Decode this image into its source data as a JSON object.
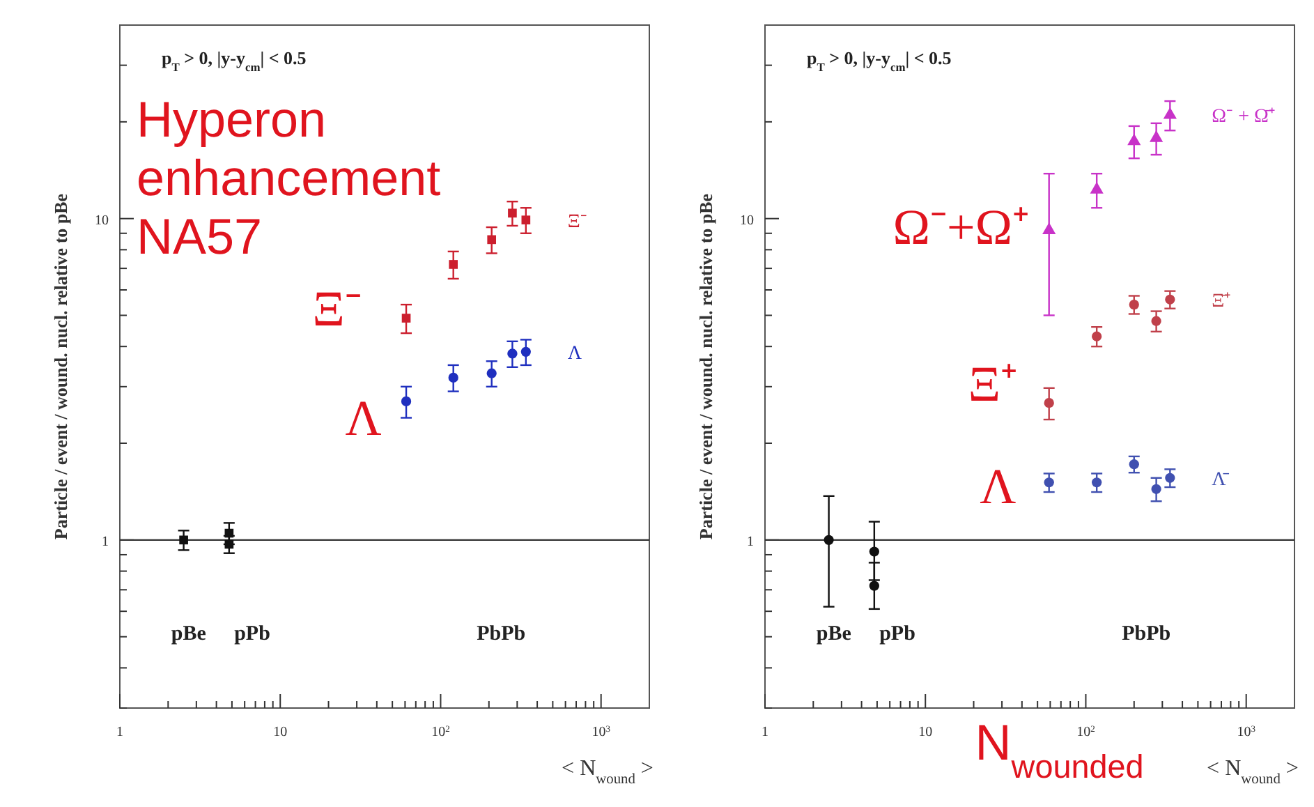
{
  "chart_data": [
    {
      "type": "scatter",
      "title": "Hyperon enhancement NA57",
      "subtitle": "p$_{T}$ > 0,  |y-y$_{cm}$| < 0.5",
      "xlabel": "< N$_{wound}$ >",
      "ylabel": "Particle / event / wound. nucl. relative to pBe",
      "log": "xy",
      "grid": false,
      "xlim": [
        1,
        2000
      ],
      "ylim": [
        0.3,
        40
      ],
      "xticks": [
        {
          "value": 1,
          "label": "1"
        },
        {
          "value": 2,
          "label": null
        },
        {
          "value": 3,
          "label": null
        },
        {
          "value": 4,
          "label": null
        },
        {
          "value": 5,
          "label": null
        },
        {
          "value": 6,
          "label": null
        },
        {
          "value": 7,
          "label": null
        },
        {
          "value": 8,
          "label": null
        },
        {
          "value": 9,
          "label": null
        },
        {
          "value": 10,
          "label": "10"
        },
        {
          "value": 20,
          "label": null
        },
        {
          "value": 30,
          "label": null
        },
        {
          "value": 40,
          "label": null
        },
        {
          "value": 50,
          "label": null
        },
        {
          "value": 60,
          "label": null
        },
        {
          "value": 70,
          "label": null
        },
        {
          "value": 80,
          "label": null
        },
        {
          "value": 90,
          "label": null
        },
        {
          "value": 100,
          "label": "10$^{2}$"
        },
        {
          "value": 200,
          "label": null
        },
        {
          "value": 300,
          "label": null
        },
        {
          "value": 400,
          "label": null
        },
        {
          "value": 500,
          "label": null
        },
        {
          "value": 600,
          "label": null
        },
        {
          "value": 700,
          "label": null
        },
        {
          "value": 800,
          "label": null
        },
        {
          "value": 900,
          "label": null
        },
        {
          "value": 1000,
          "label": "10$^{3}$"
        }
      ],
      "yticks": [
        {
          "value": 0.3,
          "label": null
        },
        {
          "value": 0.4,
          "label": null
        },
        {
          "value": 0.5,
          "label": null
        },
        {
          "value": 0.6,
          "label": null
        },
        {
          "value": 0.7,
          "label": null
        },
        {
          "value": 0.8,
          "label": null
        },
        {
          "value": 0.9,
          "label": null
        },
        {
          "value": 1,
          "label": "1"
        },
        {
          "value": 2,
          "label": null
        },
        {
          "value": 3,
          "label": null
        },
        {
          "value": 4,
          "label": null
        },
        {
          "value": 5,
          "label": null
        },
        {
          "value": 6,
          "label": null
        },
        {
          "value": 7,
          "label": null
        },
        {
          "value": 8,
          "label": null
        },
        {
          "value": 9,
          "label": null
        },
        {
          "value": 10,
          "label": "10"
        },
        {
          "value": 20,
          "label": null
        },
        {
          "value": 30,
          "label": null
        }
      ],
      "ref_lines": [
        {
          "axis": "y",
          "value": 1,
          "color": "#333333"
        }
      ],
      "series": [
        {
          "color": "#111111",
          "marker": "square",
          "x": [
            2.5,
            4.8,
            4.8
          ],
          "values": [
            1,
            1.05,
            0.97
          ],
          "errors": [
            0.07,
            0.08,
            0.06
          ]
        },
        {
          "name": "Ξ⁻",
          "color": "#cc1f2e",
          "marker": "square",
          "x": [
            61,
            120,
            208,
            280,
            340
          ],
          "values": [
            4.9,
            7.2,
            8.6,
            10.4,
            9.9
          ],
          "errors": [
            0.5,
            0.7,
            0.8,
            0.9,
            0.9
          ]
        },
        {
          "name": "Λ",
          "color": "#1f2fbf",
          "marker": "circle",
          "x": [
            61,
            120,
            208,
            280,
            340
          ],
          "values": [
            2.7,
            3.2,
            3.3,
            3.8,
            3.85
          ],
          "errors": [
            0.3,
            0.3,
            0.3,
            0.35,
            0.35
          ]
        }
      ],
      "annotations": [
        "Ξ⁻",
        "Λ",
        "pBe",
        "pPb",
        "PbPb"
      ]
    },
    {
      "type": "scatter",
      "subtitle": "p$_{T}$ > 0,  |y-y$_{cm}$| < 0.5",
      "xlabel": "< N$_{wound}$ >",
      "ylabel": "Particle / event / wound. nucl. relative to pBe",
      "log": "xy",
      "grid": false,
      "xlim": [
        1,
        2000
      ],
      "ylim": [
        0.3,
        40
      ],
      "xticks": [
        {
          "value": 1,
          "label": "1"
        },
        {
          "value": 2,
          "label": null
        },
        {
          "value": 3,
          "label": null
        },
        {
          "value": 4,
          "label": null
        },
        {
          "value": 5,
          "label": null
        },
        {
          "value": 6,
          "label": null
        },
        {
          "value": 7,
          "label": null
        },
        {
          "value": 8,
          "label": null
        },
        {
          "value": 9,
          "label": null
        },
        {
          "value": 10,
          "label": "10"
        },
        {
          "value": 20,
          "label": null
        },
        {
          "value": 30,
          "label": null
        },
        {
          "value": 40,
          "label": null
        },
        {
          "value": 50,
          "label": null
        },
        {
          "value": 60,
          "label": null
        },
        {
          "value": 70,
          "label": null
        },
        {
          "value": 80,
          "label": null
        },
        {
          "value": 90,
          "label": null
        },
        {
          "value": 100,
          "label": "10$^{2}$"
        },
        {
          "value": 200,
          "label": null
        },
        {
          "value": 300,
          "label": null
        },
        {
          "value": 400,
          "label": null
        },
        {
          "value": 500,
          "label": null
        },
        {
          "value": 600,
          "label": null
        },
        {
          "value": 700,
          "label": null
        },
        {
          "value": 800,
          "label": null
        },
        {
          "value": 900,
          "label": null
        },
        {
          "value": 1000,
          "label": "10$^{3}$"
        }
      ],
      "yticks": [
        {
          "value": 0.3,
          "label": null
        },
        {
          "value": 0.4,
          "label": null
        },
        {
          "value": 0.5,
          "label": null
        },
        {
          "value": 0.6,
          "label": null
        },
        {
          "value": 0.7,
          "label": null
        },
        {
          "value": 0.8,
          "label": null
        },
        {
          "value": 0.9,
          "label": null
        },
        {
          "value": 1,
          "label": "1"
        },
        {
          "value": 2,
          "label": null
        },
        {
          "value": 3,
          "label": null
        },
        {
          "value": 4,
          "label": null
        },
        {
          "value": 5,
          "label": null
        },
        {
          "value": 6,
          "label": null
        },
        {
          "value": 7,
          "label": null
        },
        {
          "value": 8,
          "label": null
        },
        {
          "value": 9,
          "label": null
        },
        {
          "value": 10,
          "label": "10"
        },
        {
          "value": 20,
          "label": null
        },
        {
          "value": 30,
          "label": null
        }
      ],
      "ref_lines": [
        {
          "axis": "y",
          "value": 1,
          "color": "#333333"
        }
      ],
      "series": [
        {
          "color": "#111111",
          "marker": "circle",
          "x": [
            2.5,
            4.8,
            4.8
          ],
          "values": [
            1,
            0.92,
            0.72
          ],
          "errors": [
            [
              0.62,
              1.37
            ],
            [
              0.75,
              1.14
            ],
            [
              0.61,
              0.85
            ]
          ]
        },
        {
          "name": "Ω⁻ + Ω̄⁺",
          "color": "#c832c8",
          "marker": "triangle",
          "x": [
            59,
            117,
            200,
            275,
            335
          ],
          "values": [
            9.2,
            12.3,
            17.4,
            17.8,
            21
          ],
          "errors": [
            [
              5.0,
              13.8
            ],
            1.5,
            2,
            2,
            2.2
          ]
        },
        {
          "name": "Ξ̄⁺",
          "color": "#c0404a",
          "marker": "circle",
          "x": [
            59,
            117,
            200,
            275,
            335
          ],
          "values": [
            2.67,
            4.3,
            5.4,
            4.8,
            5.6
          ],
          "errors": [
            0.3,
            0.3,
            0.35,
            0.35,
            0.35
          ]
        },
        {
          "name": "Λ̄",
          "color": "#4050b0",
          "marker": "circle",
          "x": [
            59,
            117,
            200,
            275,
            335
          ],
          "values": [
            1.51,
            1.51,
            1.72,
            1.44,
            1.56
          ],
          "errors": [
            0.1,
            0.1,
            0.1,
            0.12,
            0.1
          ]
        }
      ],
      "annotations": [
        "N$_{wounded}$",
        "Ω⁻+Ω⁺",
        "Ξ⁺",
        "Λ",
        "pBe",
        "pPb",
        "PbPb"
      ]
    }
  ]
}
